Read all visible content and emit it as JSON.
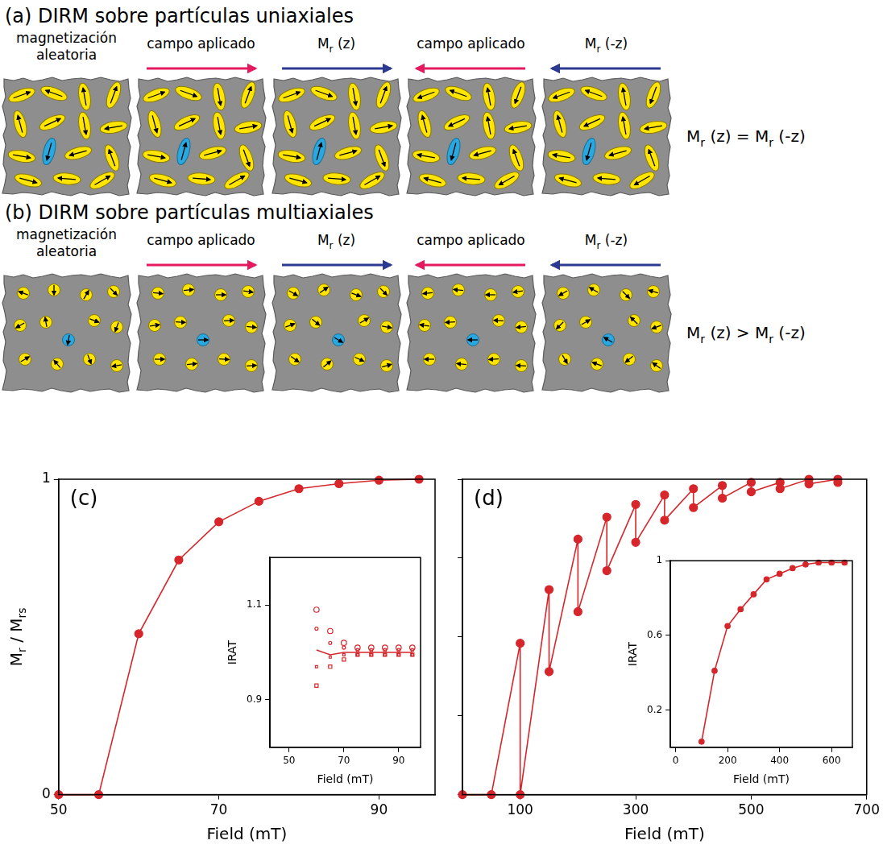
{
  "diagrams": [
    {
      "title": "(a) DIRM sobre partículas uniaxiales",
      "particles": "uniaxial",
      "stages": [
        {
          "label": "magnetización aleatoria"
        },
        {
          "label": "campo aplicado",
          "arrow": "right",
          "color": "#e5195e"
        },
        {
          "label": [
            "M",
            {
              "sub": "r"
            },
            " (z)"
          ],
          "arrow": "right",
          "color": "#2b3990"
        },
        {
          "label": "campo aplicado",
          "arrow": "left",
          "color": "#e5195e"
        },
        {
          "label": [
            "M",
            {
              "sub": "r"
            },
            " (-z)"
          ],
          "arrow": "left",
          "color": "#2b3990"
        }
      ],
      "result": [
        "M",
        {
          "sub": "r"
        },
        " (z) = M",
        {
          "sub": "r"
        },
        " (-z)"
      ]
    },
    {
      "title": "(b) DIRM sobre partículas multiaxiales",
      "particles": "multiaxial",
      "stages": [
        {
          "label": "magnetización aleatoria"
        },
        {
          "label": "campo aplicado",
          "arrow": "right",
          "color": "#e5195e"
        },
        {
          "label": [
            "M",
            {
              "sub": "r"
            },
            " (z)"
          ],
          "arrow": "right",
          "color": "#2b3990"
        },
        {
          "label": "campo aplicado",
          "arrow": "left",
          "color": "#e5195e"
        },
        {
          "label": [
            "M",
            {
              "sub": "r"
            },
            " (-z)"
          ],
          "arrow": "left",
          "color": "#2b3990"
        }
      ],
      "result": [
        "M",
        {
          "sub": "r"
        },
        " (z) > M",
        {
          "sub": "r"
        },
        " (-z)"
      ]
    }
  ],
  "chart_data": [
    {
      "type": "line",
      "title": "(c)",
      "x_label": "Field (mT)",
      "y_label": [
        "M",
        {
          "sub": "r"
        },
        " / M",
        {
          "sub": "rs"
        }
      ],
      "x": [
        50,
        55,
        60,
        65,
        70,
        75,
        80,
        85,
        90,
        95
      ],
      "values": [
        0,
        0,
        0.51,
        0.744,
        0.865,
        0.93,
        0.97,
        0.986,
        0.997,
        1.0
      ],
      "color": "#d7262b",
      "marker": "circle",
      "xlim": [
        50,
        97
      ],
      "xticks": [
        50,
        70,
        90
      ],
      "ylim": [
        0,
        1
      ],
      "yticks": [
        0,
        1
      ],
      "grid": false,
      "inset": {
        "type": "scatter",
        "x_label": "Field (mT)",
        "y_label": "IRAT",
        "x": [
          60,
          65,
          70,
          75,
          80,
          85,
          90,
          95
        ],
        "color": "#d7262b",
        "series": [
          {
            "type": "line",
            "marker": "none",
            "values": [
              1.005,
              0.995,
              1.0,
              1.0,
              1.0,
              1.0,
              1.0,
              1.0
            ]
          },
          {
            "marker": "open_circle",
            "values": [
              1.09,
              1.045,
              1.02,
              1.01,
              1.01,
              1.01,
              1.01,
              1.01
            ]
          },
          {
            "marker": "small_open_circle",
            "values": [
              1.05,
              1.02,
              1.01,
              1.005,
              1.005,
              1.005,
              1.005,
              1.005
            ]
          },
          {
            "marker": "small_open_square",
            "values": [
              0.97,
              0.99,
              0.995,
              0.995,
              0.995,
              0.995,
              0.995,
              0.995
            ]
          },
          {
            "marker": "open_square",
            "values": [
              0.93,
              0.97,
              0.985,
              0.995,
              0.995,
              0.995,
              0.995,
              0.995
            ]
          }
        ],
        "xlim": [
          43,
          98
        ],
        "xticks": [
          50,
          70,
          90
        ],
        "ylim": [
          0.8,
          1.2
        ],
        "yticks": [
          0.9,
          1.1
        ],
        "grid": false
      }
    },
    {
      "type": "line",
      "title": "(d)",
      "x_label": "Field (mT)",
      "x": [
        0,
        50,
        100,
        100,
        150,
        150,
        200,
        200,
        250,
        250,
        300,
        300,
        350,
        350,
        400,
        400,
        450,
        450,
        500,
        500,
        550,
        550,
        600,
        600,
        650,
        650
      ],
      "values": [
        0,
        0,
        0.48,
        0,
        0.65,
        0.39,
        0.81,
        0.58,
        0.88,
        0.71,
        0.92,
        0.8,
        0.95,
        0.87,
        0.97,
        0.91,
        0.98,
        0.94,
        0.99,
        0.96,
        0.99,
        0.97,
        1.0,
        0.985,
        1.0,
        0.99
      ],
      "color": "#d7262b",
      "marker": "circle",
      "xlim": [
        0,
        700
      ],
      "xticks": [
        100,
        300,
        500,
        700
      ],
      "ylim": [
        0,
        1
      ],
      "yticks": [
        0,
        0.25,
        0.5,
        0.75,
        1
      ],
      "tick_labels": "x",
      "grid": false,
      "inset": {
        "type": "line",
        "x_label": "Field (mT)",
        "y_label": "IRAT",
        "x": [
          100,
          150,
          200,
          250,
          300,
          350,
          400,
          450,
          500,
          550,
          600,
          650
        ],
        "values": [
          0.03,
          0.41,
          0.65,
          0.74,
          0.82,
          0.9,
          0.93,
          0.96,
          0.98,
          0.99,
          0.99,
          0.99
        ],
        "color": "#d7262b",
        "marker": "circle",
        "xlim": [
          -20,
          680
        ],
        "xticks": [
          0,
          200,
          400,
          600
        ],
        "ylim": [
          0,
          1
        ],
        "yticks": [
          0.2,
          0.6,
          1
        ],
        "grid": false
      }
    }
  ]
}
